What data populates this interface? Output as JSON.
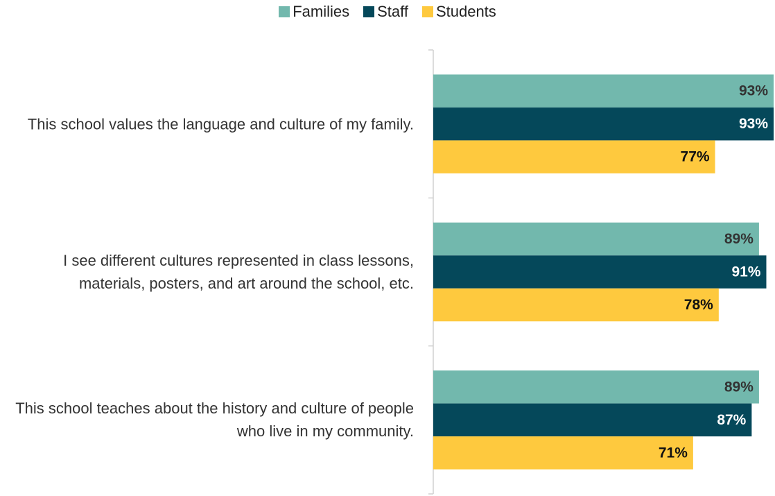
{
  "chart_data": {
    "type": "hbar",
    "categories": [
      "This school values the language and culture of my family.",
      "I see different cultures represented in class lessons, materials, posters, and art around the school, etc.",
      "This school teaches about the history and culture of people who live in my community."
    ],
    "series": [
      {
        "name": "Families",
        "color": "#72b8ad",
        "label_color": "#333333",
        "values": [
          93,
          89,
          89
        ],
        "value_labels": [
          "93%",
          "89%",
          "89%"
        ]
      },
      {
        "name": "Staff",
        "color": "#05485a",
        "label_color": "#ffffff",
        "values": [
          93,
          91,
          87
        ],
        "value_labels": [
          "93%",
          "91%",
          "87%"
        ]
      },
      {
        "name": "Students",
        "color": "#fec93e",
        "label_color": "#111111",
        "values": [
          77,
          78,
          71
        ],
        "value_labels": [
          "77%",
          "78%",
          "71%"
        ]
      }
    ],
    "xlim": [
      0,
      100
    ],
    "legend": "top"
  }
}
